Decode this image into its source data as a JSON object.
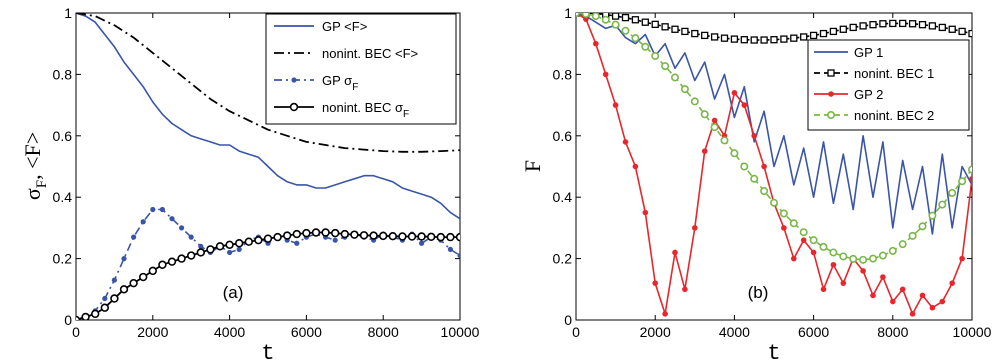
{
  "chart_data": [
    {
      "type": "line",
      "panel_label": "(a)",
      "xlabel": "t",
      "ylabel": "σ_F, <F>",
      "ylabel_parts": {
        "sigma": "σ",
        "sub": "F",
        "rest": ", <F>"
      },
      "xlim": [
        0,
        10000
      ],
      "ylim": [
        0,
        1
      ],
      "xticks": [
        "0",
        "2000",
        "4000",
        "6000",
        "8000",
        "10000"
      ],
      "yticks": [
        "0",
        "0.2",
        "0.4",
        "0.6",
        "0.8",
        "1"
      ],
      "legend_position": "top-right",
      "series": [
        {
          "name": "GP <F>",
          "name_parts": {
            "main": "GP <F>",
            "sub": ""
          },
          "color": "#3a55a8",
          "style": "solid",
          "x": [
            0,
            250,
            500,
            750,
            1000,
            1250,
            1500,
            1750,
            2000,
            2250,
            2500,
            2750,
            3000,
            3250,
            3500,
            3750,
            4000,
            4250,
            4500,
            4750,
            5000,
            5250,
            5500,
            5750,
            6000,
            6250,
            6500,
            6750,
            7000,
            7250,
            7500,
            7750,
            8000,
            8250,
            8500,
            8750,
            9000,
            9250,
            9500,
            9750,
            10000
          ],
          "y": [
            1.0,
            0.99,
            0.97,
            0.93,
            0.89,
            0.84,
            0.8,
            0.76,
            0.71,
            0.67,
            0.64,
            0.62,
            0.6,
            0.59,
            0.58,
            0.57,
            0.57,
            0.55,
            0.54,
            0.53,
            0.5,
            0.47,
            0.45,
            0.44,
            0.44,
            0.43,
            0.43,
            0.44,
            0.45,
            0.46,
            0.47,
            0.47,
            0.46,
            0.45,
            0.43,
            0.42,
            0.41,
            0.4,
            0.38,
            0.35,
            0.33
          ]
        },
        {
          "name": "nonint. BEC <F>",
          "name_parts": {
            "main": "nonint. BEC <F>",
            "sub": ""
          },
          "color": "#000000",
          "style": "dashdot",
          "x": [
            0,
            500,
            1000,
            1500,
            2000,
            2500,
            3000,
            3500,
            4000,
            4500,
            5000,
            5500,
            6000,
            6500,
            7000,
            7500,
            8000,
            8500,
            9000,
            9500,
            10000
          ],
          "y": [
            1.0,
            0.99,
            0.96,
            0.92,
            0.87,
            0.82,
            0.77,
            0.72,
            0.68,
            0.65,
            0.62,
            0.6,
            0.58,
            0.57,
            0.56,
            0.555,
            0.55,
            0.548,
            0.548,
            0.55,
            0.553
          ]
        },
        {
          "name": "GP σF",
          "name_parts": {
            "main": "GP σ",
            "sub": "F"
          },
          "color": "#3a55a8",
          "style": "dashdot-markers",
          "x": [
            0,
            250,
            500,
            750,
            1000,
            1250,
            1500,
            1750,
            2000,
            2250,
            2500,
            2750,
            3000,
            3250,
            3500,
            3750,
            4000,
            4250,
            4500,
            4750,
            5000,
            5250,
            5500,
            5750,
            6000,
            6250,
            6500,
            6750,
            7000,
            7250,
            7500,
            7750,
            8000,
            8250,
            8500,
            8750,
            9000,
            9250,
            9500,
            9750,
            10000
          ],
          "y": [
            0.0,
            0.01,
            0.03,
            0.07,
            0.13,
            0.2,
            0.27,
            0.32,
            0.36,
            0.36,
            0.33,
            0.3,
            0.27,
            0.24,
            0.22,
            0.24,
            0.22,
            0.23,
            0.26,
            0.27,
            0.25,
            0.27,
            0.26,
            0.25,
            0.27,
            0.28,
            0.27,
            0.26,
            0.27,
            0.28,
            0.27,
            0.26,
            0.28,
            0.27,
            0.26,
            0.28,
            0.25,
            0.27,
            0.26,
            0.23,
            0.21
          ]
        },
        {
          "name": "nonint. BEC σF",
          "name_parts": {
            "main": "nonint. BEC σ",
            "sub": "F"
          },
          "color": "#000000",
          "style": "solid-circles",
          "x": [
            0,
            250,
            500,
            750,
            1000,
            1250,
            1500,
            1750,
            2000,
            2250,
            2500,
            2750,
            3000,
            3250,
            3500,
            3750,
            4000,
            4250,
            4500,
            4750,
            5000,
            5250,
            5500,
            5750,
            6000,
            6250,
            6500,
            6750,
            7000,
            7250,
            7500,
            7750,
            8000,
            8250,
            8500,
            8750,
            9000,
            9250,
            9500,
            9750,
            10000
          ],
          "y": [
            0.0,
            0.01,
            0.02,
            0.04,
            0.07,
            0.1,
            0.12,
            0.14,
            0.16,
            0.18,
            0.19,
            0.2,
            0.21,
            0.22,
            0.23,
            0.24,
            0.245,
            0.25,
            0.255,
            0.26,
            0.265,
            0.27,
            0.275,
            0.28,
            0.283,
            0.285,
            0.285,
            0.283,
            0.28,
            0.278,
            0.276,
            0.275,
            0.274,
            0.273,
            0.272,
            0.272,
            0.272,
            0.271,
            0.27,
            0.27,
            0.27
          ]
        }
      ]
    },
    {
      "type": "line",
      "panel_label": "(b)",
      "xlabel": "t",
      "ylabel": "F",
      "xlim": [
        0,
        10000
      ],
      "ylim": [
        0,
        1
      ],
      "xticks": [
        "0",
        "2000",
        "4000",
        "6000",
        "8000",
        "10000"
      ],
      "yticks": [
        "0",
        "0.2",
        "0.4",
        "0.6",
        "0.8",
        "1"
      ],
      "legend_position": "top-right",
      "series": [
        {
          "name": "GP 1",
          "name_parts": {
            "main": "GP 1",
            "sub": ""
          },
          "color": "#3a55a8",
          "style": "solid",
          "x": [
            0,
            250,
            500,
            750,
            1000,
            1250,
            1500,
            1750,
            2000,
            2250,
            2500,
            2750,
            3000,
            3250,
            3500,
            3750,
            4000,
            4250,
            4500,
            4750,
            5000,
            5250,
            5500,
            5750,
            6000,
            6250,
            6500,
            6750,
            7000,
            7250,
            7500,
            7750,
            8000,
            8250,
            8500,
            8750,
            9000,
            9250,
            9500,
            9750,
            10000
          ],
          "y": [
            1.0,
            0.99,
            0.97,
            0.95,
            0.96,
            0.92,
            0.9,
            0.93,
            0.86,
            0.9,
            0.82,
            0.87,
            0.78,
            0.84,
            0.72,
            0.8,
            0.66,
            0.76,
            0.58,
            0.68,
            0.5,
            0.6,
            0.44,
            0.56,
            0.4,
            0.58,
            0.38,
            0.54,
            0.36,
            0.6,
            0.4,
            0.58,
            0.3,
            0.52,
            0.36,
            0.5,
            0.28,
            0.54,
            0.3,
            0.5,
            0.44
          ]
        },
        {
          "name": "nonint. BEC 1",
          "name_parts": {
            "main": "nonint. BEC 1",
            "sub": ""
          },
          "color": "#000000",
          "style": "dashed-squares",
          "x": [
            0,
            250,
            500,
            750,
            1000,
            1250,
            1500,
            1750,
            2000,
            2250,
            2500,
            2750,
            3000,
            3250,
            3500,
            3750,
            4000,
            4250,
            4500,
            4750,
            5000,
            5250,
            5500,
            5750,
            6000,
            6250,
            6500,
            6750,
            7000,
            7250,
            7500,
            7750,
            8000,
            8250,
            8500,
            8750,
            9000,
            9250,
            9500,
            9750,
            10000
          ],
          "y": [
            1.0,
            1.0,
            0.998,
            0.995,
            0.99,
            0.985,
            0.978,
            0.97,
            0.963,
            0.955,
            0.947,
            0.94,
            0.933,
            0.927,
            0.922,
            0.918,
            0.915,
            0.913,
            0.912,
            0.912,
            0.913,
            0.915,
            0.918,
            0.922,
            0.927,
            0.933,
            0.94,
            0.947,
            0.953,
            0.958,
            0.962,
            0.965,
            0.966,
            0.966,
            0.965,
            0.962,
            0.958,
            0.953,
            0.947,
            0.94,
            0.933
          ]
        },
        {
          "name": "GP 2",
          "name_parts": {
            "main": "GP 2",
            "sub": ""
          },
          "color": "#e8262b",
          "style": "solid-dots",
          "x": [
            0,
            250,
            500,
            750,
            1000,
            1250,
            1500,
            1750,
            2000,
            2250,
            2500,
            2750,
            3000,
            3250,
            3500,
            3750,
            4000,
            4250,
            4500,
            4750,
            5000,
            5250,
            5500,
            5750,
            6000,
            6250,
            6500,
            6750,
            7000,
            7250,
            7500,
            7750,
            8000,
            8250,
            8500,
            8750,
            9000,
            9250,
            9500,
            9750,
            10000
          ],
          "y": [
            1.0,
            0.98,
            0.9,
            0.8,
            0.7,
            0.58,
            0.5,
            0.35,
            0.12,
            0.02,
            0.22,
            0.1,
            0.3,
            0.55,
            0.65,
            0.6,
            0.74,
            0.7,
            0.6,
            0.5,
            0.38,
            0.3,
            0.2,
            0.26,
            0.22,
            0.1,
            0.18,
            0.12,
            0.2,
            0.16,
            0.08,
            0.14,
            0.06,
            0.1,
            0.02,
            0.08,
            0.04,
            0.06,
            0.12,
            0.2,
            0.46
          ]
        },
        {
          "name": "nonint. BEC 2",
          "name_parts": {
            "main": "nonint. BEC 2",
            "sub": ""
          },
          "color": "#7ab648",
          "style": "dashed-circles",
          "x": [
            0,
            250,
            500,
            750,
            1000,
            1250,
            1500,
            1750,
            2000,
            2250,
            2500,
            2750,
            3000,
            3250,
            3500,
            3750,
            4000,
            4250,
            4500,
            4750,
            5000,
            5250,
            5500,
            5750,
            6000,
            6250,
            6500,
            6750,
            7000,
            7250,
            7500,
            7750,
            8000,
            8250,
            8500,
            8750,
            9000,
            9250,
            9500,
            9750,
            10000
          ],
          "y": [
            1.0,
            0.997,
            0.99,
            0.978,
            0.962,
            0.942,
            0.918,
            0.89,
            0.86,
            0.827,
            0.79,
            0.752,
            0.712,
            0.67,
            0.628,
            0.585,
            0.543,
            0.5,
            0.46,
            0.42,
            0.382,
            0.347,
            0.315,
            0.286,
            0.26,
            0.238,
            0.22,
            0.207,
            0.199,
            0.196,
            0.2,
            0.21,
            0.225,
            0.247,
            0.274,
            0.305,
            0.34,
            0.376,
            0.414,
            0.452,
            0.49
          ]
        }
      ]
    }
  ]
}
